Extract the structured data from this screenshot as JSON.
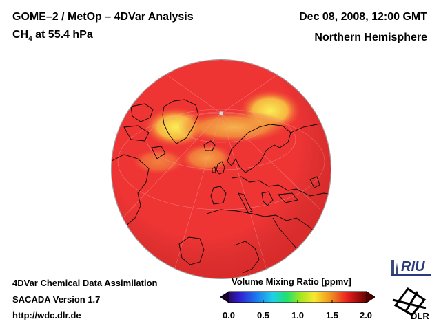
{
  "header": {
    "title": "GOME–2 / MetOp – 4DVar Analysis",
    "species": "CH",
    "species_sub": "4",
    "level": " at 55.4 hPa",
    "date": "Dec 08, 2008, 12:00 GMT",
    "region": "Northern Hemisphere"
  },
  "footer": {
    "line1": "4DVar Chemical Data Assimilation",
    "line2": "SACADA Version 1.7",
    "line3": "http://wdc.dlr.de"
  },
  "legend": {
    "title": "Volume Mixing Ratio [ppmv]",
    "ticks": [
      "0.0",
      "0.5",
      "1.0",
      "1.5",
      "2.0"
    ],
    "min": 0.0,
    "max": 2.0
  },
  "logos": {
    "riu": "RIU",
    "dlr": "DLR"
  },
  "colors": {
    "field_main": "#ef3434",
    "field_high": "#f7e64a",
    "coast": "#000000"
  }
}
